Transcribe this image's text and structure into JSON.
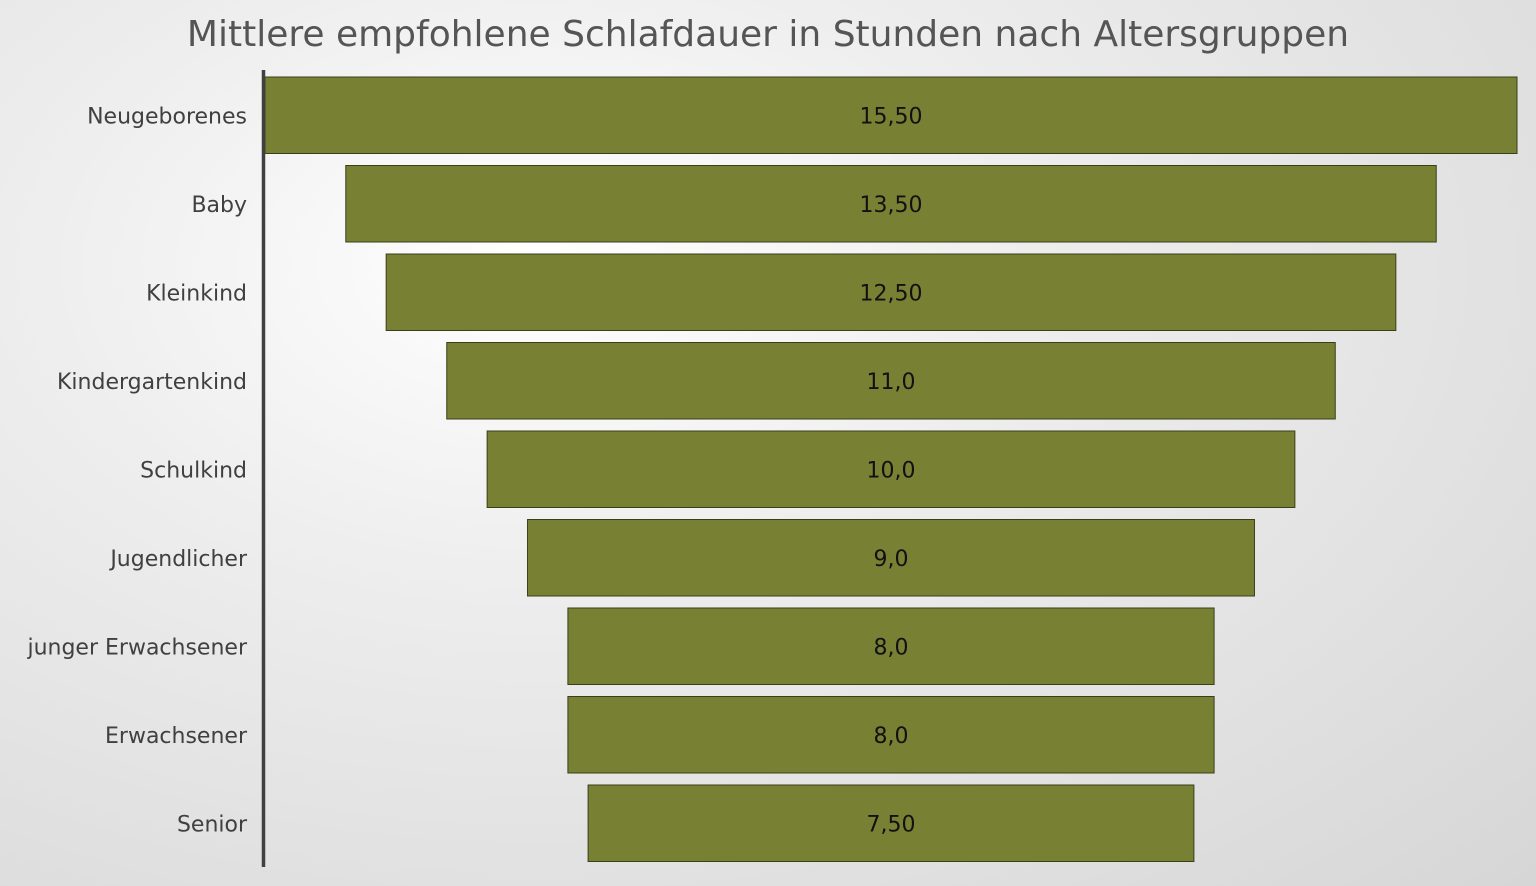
{
  "chart_data": {
    "type": "funnel",
    "title": "Mittlere empfohlene Schlafdauer in Stunden nach Altersgruppen",
    "categories": [
      "Neugeborenes",
      "Baby",
      "Kleinkind",
      "Kindergartenkind",
      "Schulkind",
      "Jugendlicher",
      "junger Erwachsener",
      "Erwachsener",
      "Senior"
    ],
    "values": [
      15.5,
      13.5,
      12.5,
      11.0,
      10.0,
      9.0,
      8.0,
      8.0,
      7.5
    ],
    "data_labels": [
      "15,50",
      "13,50",
      "12,50",
      "11,0",
      "10,0",
      "9,0",
      "8,0",
      "8,0",
      "7,50"
    ],
    "bar_color": "#778033",
    "bar_border_color": "#3a3f17",
    "axis_color": "#404040"
  }
}
